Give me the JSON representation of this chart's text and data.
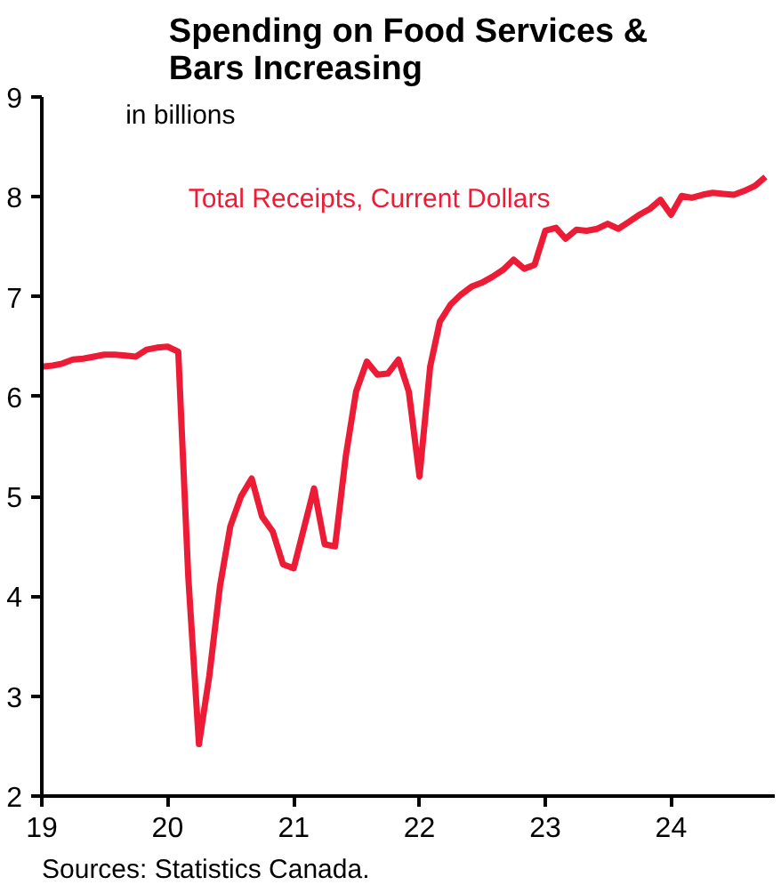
{
  "chart_data": {
    "type": "line",
    "title": "Spending on Food Services &\nBars Increasing",
    "annotations": [
      "in billions",
      "Sources: Statistics Canada."
    ],
    "x": [
      "2019-01",
      "2019-02",
      "2019-03",
      "2019-04",
      "2019-05",
      "2019-06",
      "2019-07",
      "2019-08",
      "2019-09",
      "2019-10",
      "2019-11",
      "2019-12",
      "2020-01",
      "2020-02",
      "2020-03",
      "2020-04",
      "2020-05",
      "2020-06",
      "2020-07",
      "2020-08",
      "2020-09",
      "2020-10",
      "2020-11",
      "2020-12",
      "2021-01",
      "2021-02",
      "2021-03",
      "2021-04",
      "2021-05",
      "2021-06",
      "2021-07",
      "2021-08",
      "2021-09",
      "2021-10",
      "2021-11",
      "2021-12",
      "2022-01",
      "2022-02",
      "2022-03",
      "2022-04",
      "2022-05",
      "2022-06",
      "2022-07",
      "2022-08",
      "2022-09",
      "2022-10",
      "2022-11",
      "2022-12",
      "2023-01",
      "2023-02",
      "2023-03",
      "2023-04",
      "2023-05",
      "2023-06",
      "2023-07",
      "2023-08",
      "2023-09",
      "2023-10",
      "2023-11",
      "2023-12",
      "2024-01",
      "2024-02",
      "2024-03",
      "2024-04",
      "2024-05",
      "2024-06",
      "2024-07",
      "2024-08",
      "2024-09",
      "2024-10"
    ],
    "series": [
      {
        "name": "Total Receipts, Current Dollars",
        "color": "#ed1c36",
        "values": [
          6.3,
          6.31,
          6.33,
          6.37,
          6.38,
          6.4,
          6.42,
          6.42,
          6.41,
          6.4,
          6.47,
          6.49,
          6.5,
          6.45,
          4.2,
          2.52,
          3.2,
          4.1,
          4.7,
          5.0,
          5.18,
          4.8,
          4.65,
          4.32,
          4.28,
          4.7,
          5.08,
          4.52,
          4.5,
          5.4,
          6.05,
          6.35,
          6.22,
          6.23,
          6.37,
          6.05,
          5.2,
          6.3,
          6.75,
          6.92,
          7.02,
          7.1,
          7.14,
          7.2,
          7.27,
          7.37,
          7.28,
          7.32,
          7.66,
          7.69,
          7.58,
          7.67,
          7.66,
          7.68,
          7.73,
          7.68,
          7.75,
          7.82,
          7.88,
          7.97,
          7.82,
          8.01,
          7.99,
          8.02,
          8.04,
          8.03,
          8.02,
          8.06,
          8.11,
          8.2
        ]
      }
    ],
    "xlim": [
      "2019-01-01",
      "2024-10-28"
    ],
    "xticks": [
      {
        "value": "2019",
        "label": "19"
      },
      {
        "value": "2020",
        "label": "20"
      },
      {
        "value": "2021",
        "label": "21"
      },
      {
        "value": "2022",
        "label": "22"
      },
      {
        "value": "2023",
        "label": "23"
      },
      {
        "value": "2024",
        "label": "24"
      }
    ],
    "ylim": [
      2,
      9
    ],
    "yticks": [
      2,
      3,
      4,
      5,
      6,
      7,
      8,
      9
    ],
    "grid": false,
    "line_style": "solid",
    "marker": "none"
  }
}
